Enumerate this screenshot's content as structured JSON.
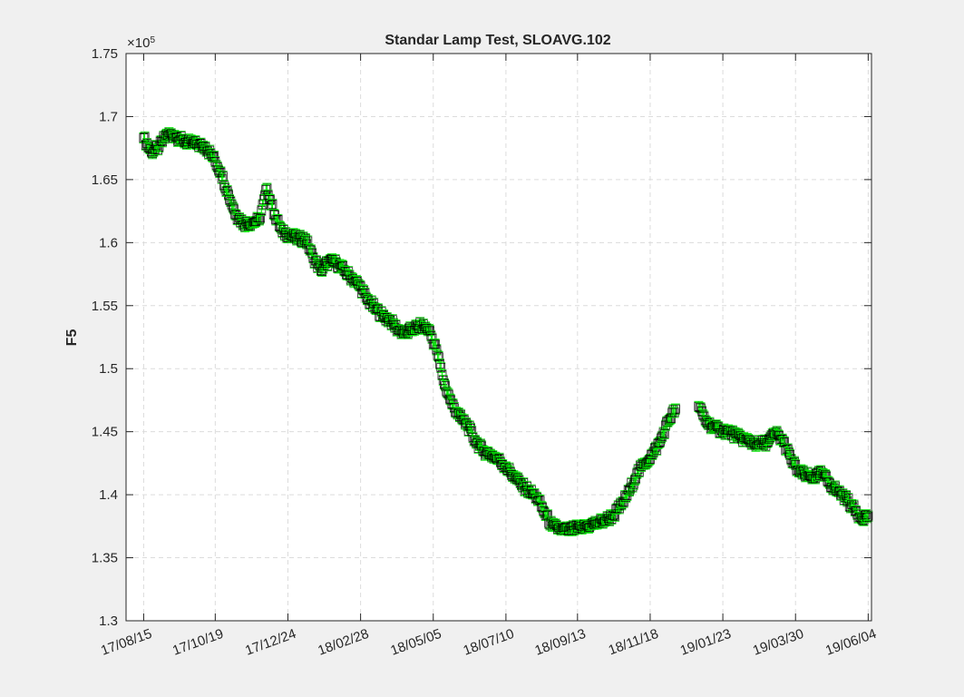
{
  "chart_data": {
    "type": "scatter",
    "title": "Standar Lamp Test, SLOAVG.102",
    "xlabel": "",
    "ylabel": "F5",
    "y_exponent_label": "×10",
    "y_exponent_power": "5",
    "ylim": [
      1.3,
      1.75
    ],
    "y_ticks": [
      "1.3",
      "1.35",
      "1.4",
      "1.45",
      "1.5",
      "1.55",
      "1.6",
      "1.65",
      "1.7",
      "1.75"
    ],
    "xlim": [
      "2017-07-30",
      "2019-06-07"
    ],
    "x_ticks": [
      {
        "date": "2017-08-15",
        "label": "17/08/15"
      },
      {
        "date": "2017-10-19",
        "label": "17/10/19"
      },
      {
        "date": "2017-12-24",
        "label": "17/12/24"
      },
      {
        "date": "2018-02-28",
        "label": "18/02/28"
      },
      {
        "date": "2018-05-05",
        "label": "18/05/05"
      },
      {
        "date": "2018-07-10",
        "label": "18/07/10"
      },
      {
        "date": "2018-09-13",
        "label": "18/09/13"
      },
      {
        "date": "2018-11-18",
        "label": "18/11/18"
      },
      {
        "date": "2019-01-23",
        "label": "19/01/23"
      },
      {
        "date": "2019-03-30",
        "label": "19/03/30"
      },
      {
        "date": "2019-06-04",
        "label": "19/06/04"
      }
    ],
    "grid": true,
    "marker": "square",
    "marker_color": "#000000",
    "errorbar_color": "#00e400",
    "axes_background": "#ffffff",
    "figure_background": "#f0f0f0",
    "series": [
      {
        "x": [
          "2017-08-15",
          "2017-08-22",
          "2017-08-29",
          "2017-09-05",
          "2017-09-12",
          "2017-09-19",
          "2017-09-26",
          "2017-10-03",
          "2017-10-10",
          "2017-10-17",
          "2017-10-24",
          "2017-10-31",
          "2017-11-07",
          "2017-11-14",
          "2017-11-21",
          "2017-11-28",
          "2017-12-05",
          "2017-12-12",
          "2017-12-19",
          "2017-12-26",
          "2018-01-02",
          "2018-01-09",
          "2018-01-16",
          "2018-01-23",
          "2018-01-30",
          "2018-02-06",
          "2018-02-13",
          "2018-02-20",
          "2018-02-27",
          "2018-03-06",
          "2018-03-13",
          "2018-03-20",
          "2018-03-27",
          "2018-04-03",
          "2018-04-10",
          "2018-04-17",
          "2018-04-24",
          "2018-05-01",
          "2018-05-08",
          "2018-05-15",
          "2018-05-22",
          "2018-05-29",
          "2018-06-05",
          "2018-06-12",
          "2018-06-19",
          "2018-06-26",
          "2018-07-03",
          "2018-07-10",
          "2018-07-17",
          "2018-07-24",
          "2018-07-31",
          "2018-08-07",
          "2018-08-14",
          "2018-08-21",
          "2018-08-28",
          "2018-09-04",
          "2018-09-11",
          "2018-09-18",
          "2018-09-25",
          "2018-10-02",
          "2018-10-09",
          "2018-10-16",
          "2018-10-23",
          "2018-10-30",
          "2018-11-06",
          "2018-11-13",
          "2018-11-20",
          "2018-11-27",
          "2018-12-04",
          "2018-12-11",
          "2018-12-18",
          "2019-01-01",
          "2019-01-08",
          "2019-01-15",
          "2019-01-22",
          "2019-01-29",
          "2019-02-05",
          "2019-02-12",
          "2019-02-19",
          "2019-02-26",
          "2019-03-05",
          "2019-03-12",
          "2019-03-19",
          "2019-03-26",
          "2019-04-02",
          "2019-04-09",
          "2019-04-16",
          "2019-04-23",
          "2019-04-30",
          "2019-05-07",
          "2019-05-14",
          "2019-05-21",
          "2019-05-28",
          "2019-06-04"
        ],
        "y": [
          1.683,
          1.672,
          1.676,
          1.686,
          1.685,
          1.681,
          1.679,
          1.678,
          1.676,
          1.668,
          1.656,
          1.638,
          1.622,
          1.615,
          1.616,
          1.618,
          1.643,
          1.622,
          1.608,
          1.606,
          1.603,
          1.603,
          1.588,
          1.578,
          1.585,
          1.584,
          1.578,
          1.572,
          1.566,
          1.555,
          1.548,
          1.542,
          1.538,
          1.531,
          1.528,
          1.532,
          1.534,
          1.531,
          1.515,
          1.488,
          1.472,
          1.462,
          1.455,
          1.443,
          1.435,
          1.432,
          1.428,
          1.422,
          1.415,
          1.408,
          1.403,
          1.398,
          1.386,
          1.375,
          1.373,
          1.372,
          1.373,
          1.374,
          1.376,
          1.378,
          1.38,
          1.384,
          1.392,
          1.403,
          1.417,
          1.425,
          1.432,
          1.442,
          1.458,
          1.468,
          null,
          1.47,
          1.458,
          1.453,
          1.451,
          1.45,
          1.446,
          1.444,
          1.441,
          1.44,
          1.442,
          1.449,
          1.442,
          1.428,
          1.418,
          1.415,
          1.414,
          1.417,
          1.409,
          1.403,
          1.398,
          1.39,
          1.382,
          1.383
        ],
        "err": 0.004
      }
    ]
  }
}
